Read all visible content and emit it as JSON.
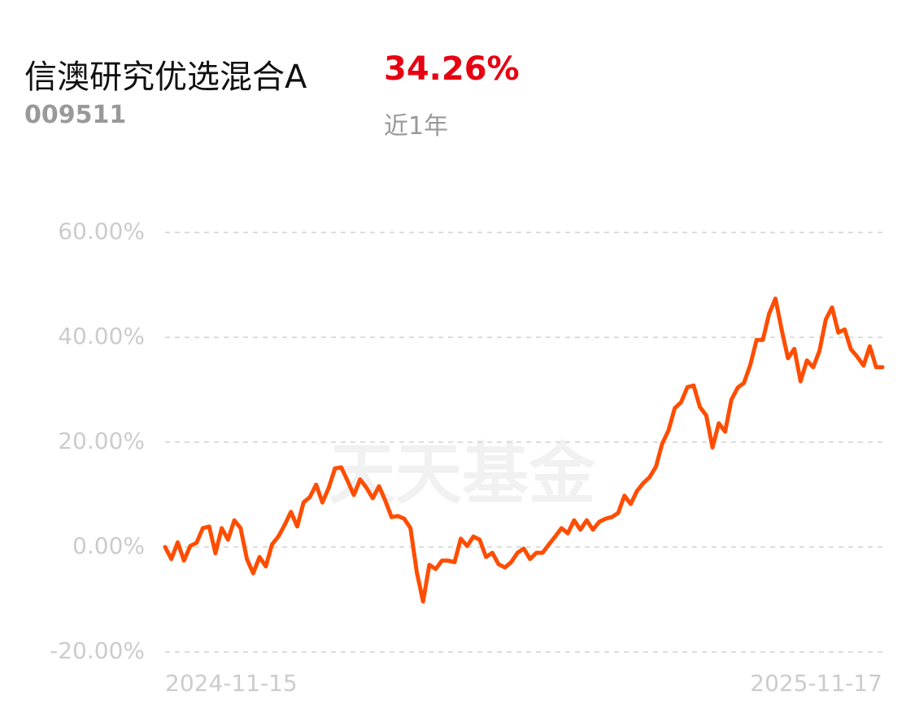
{
  "header": {
    "fund_name": "信澳研究优选混合A",
    "fund_code": "009511",
    "return": "34.26%",
    "period": "近1年"
  },
  "chart_data": {
    "type": "line",
    "watermark": "天天基金",
    "categories": [
      "2024-11-15",
      null,
      null,
      null,
      null,
      null,
      null,
      null,
      null,
      null,
      null,
      null,
      null,
      null,
      null,
      null,
      null,
      null,
      null,
      null,
      null,
      null,
      null,
      null,
      null,
      null,
      null,
      null,
      null,
      null,
      null,
      null,
      null,
      null,
      null,
      null,
      null,
      null,
      null,
      null,
      null,
      null,
      null,
      null,
      null,
      null,
      null,
      null,
      null,
      null,
      null,
      null,
      null,
      null,
      null,
      null,
      null,
      null,
      null,
      null,
      null,
      null,
      null,
      null,
      null,
      null,
      null,
      null,
      null,
      null,
      null,
      null,
      null,
      null,
      null,
      null,
      null,
      null,
      null,
      null,
      null,
      null,
      null,
      null,
      null,
      null,
      null,
      null,
      null,
      null,
      null,
      null,
      null,
      null,
      null,
      null,
      null,
      null,
      null,
      null,
      null,
      null,
      null,
      null,
      null,
      null,
      null,
      null,
      null,
      null,
      null,
      null,
      null,
      null,
      "2025-11-17"
    ],
    "series": [
      {
        "color": "#ff4d00",
        "values": [
          0,
          -2.3,
          0.9,
          -2.6,
          0.2,
          0.8,
          3.6,
          3.9,
          -1.2,
          3.6,
          1.4,
          5.1,
          3.6,
          -2.3,
          -5.0,
          -1.9,
          -3.7,
          0.5,
          2.0,
          4.2,
          6.7,
          3.9,
          8.5,
          9.5,
          11.9,
          8.5,
          11.3,
          15.0,
          15.2,
          12.6,
          9.9,
          12.9,
          11.3,
          9.3,
          11.6,
          8.8,
          5.7,
          5.9,
          5.4,
          3.6,
          -4.8,
          -10.4,
          -3.4,
          -4.2,
          -2.6,
          -2.6,
          -2.9,
          1.6,
          0.2,
          2.0,
          1.4,
          -1.9,
          -1.1,
          -3.3,
          -3.9,
          -2.9,
          -1.1,
          -0.3,
          -2.3,
          -1.1,
          -1.1,
          0.5,
          2.0,
          3.6,
          2.6,
          5.1,
          3.3,
          5.1,
          3.3,
          4.8,
          5.4,
          5.7,
          6.5,
          9.8,
          8.2,
          10.7,
          12.2,
          13.3,
          15.3,
          19.7,
          22.2,
          26.5,
          27.6,
          30.5,
          30.8,
          26.7,
          25.1,
          19.0,
          23.6,
          22.0,
          28.1,
          30.4,
          31.3,
          34.7,
          39.5,
          39.5,
          44.5,
          47.4,
          41.4,
          36.0,
          37.8,
          31.6,
          35.6,
          34.3,
          37.4,
          43.4,
          45.7,
          40.9,
          41.5,
          37.7,
          36.3,
          34.6,
          38.3,
          34.3,
          34.3
        ]
      }
    ],
    "ylim": [
      -20,
      60
    ],
    "yticks": [
      {
        "value": -20,
        "label": "-20.00%"
      },
      {
        "value": 0,
        "label": "0.00%"
      },
      {
        "value": 20,
        "label": "20.00%"
      },
      {
        "value": 40,
        "label": "40.00%"
      },
      {
        "value": 60,
        "label": "60.00%"
      }
    ],
    "grid": true
  }
}
